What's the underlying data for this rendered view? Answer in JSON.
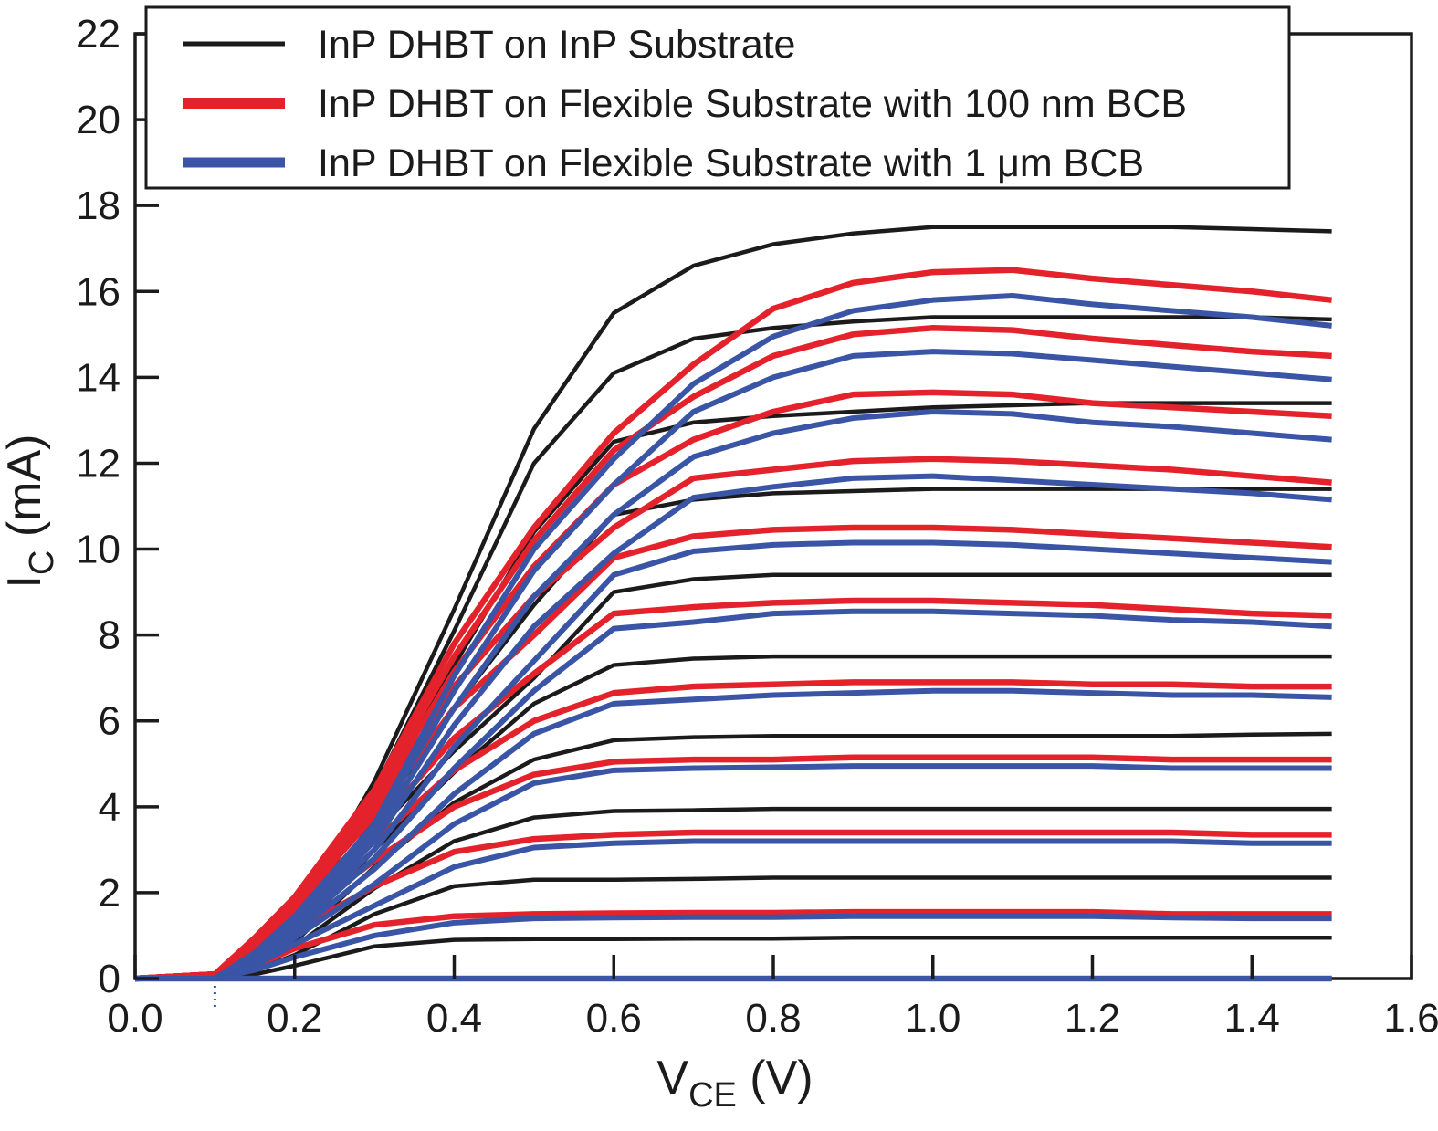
{
  "chart_data": {
    "type": "line",
    "title": "",
    "xlabel": "V_CE (V)",
    "ylabel": "I_C (mA)",
    "xlabel_parts": {
      "main": "V",
      "sub": "CE",
      "unit": " (V)"
    },
    "ylabel_parts": {
      "main": "I",
      "sub": "C",
      "unit": " (mA)"
    },
    "xlim": [
      0.0,
      1.6
    ],
    "ylim": [
      0,
      22
    ],
    "grid": false,
    "legend_position": "top-left",
    "xticks": [
      0.0,
      0.2,
      0.4,
      0.6,
      0.8,
      1.0,
      1.2,
      1.4,
      1.6
    ],
    "xtick_labels": [
      "0.0",
      "0.2",
      "0.4",
      "0.6",
      "0.8",
      "1.0",
      "1.2",
      "1.4",
      "1.6"
    ],
    "yticks": [
      0,
      2,
      4,
      6,
      8,
      10,
      12,
      14,
      16,
      18,
      20,
      22
    ],
    "ytick_labels": [
      "0",
      "2",
      "4",
      "6",
      "8",
      "10",
      "12",
      "14",
      "16",
      "18",
      "20",
      "22"
    ],
    "colors": {
      "black": "#1b1b1b",
      "red": "#e4222b",
      "blue": "#3a55a5"
    },
    "line_widths": {
      "black": 4.5,
      "red": 6.5,
      "blue": 6.0
    },
    "legend": [
      {
        "label": "InP DHBT on InP Substrate",
        "color": "black",
        "swatch_width": 5
      },
      {
        "label": "InP DHBT on Flexible Substrate with 100 nm BCB",
        "color": "red",
        "swatch_width": 12
      },
      {
        "label": "InP DHBT on Flexible Substrate with 1 μm BCB",
        "color": "blue",
        "swatch_width": 11
      }
    ],
    "x": [
      0,
      0.1,
      0.15,
      0.2,
      0.3,
      0.4,
      0.5,
      0.6,
      0.7,
      0.8,
      0.9,
      1.0,
      1.1,
      1.2,
      1.3,
      1.4,
      1.5
    ],
    "series": [
      {
        "name": "black-ib0",
        "family": "black",
        "values": [
          0,
          0,
          0,
          0,
          0,
          0,
          0,
          0,
          0,
          0,
          0,
          0,
          0,
          0,
          0,
          0,
          0
        ]
      },
      {
        "name": "black-10",
        "family": "black",
        "values": [
          0,
          0,
          0.1,
          0.3,
          0.75,
          0.9,
          0.92,
          0.92,
          0.93,
          0.93,
          0.95,
          0.95,
          0.95,
          0.95,
          0.95,
          0.95,
          0.95
        ]
      },
      {
        "name": "black-9",
        "family": "black",
        "values": [
          0,
          0,
          0.2,
          0.55,
          1.5,
          2.15,
          2.3,
          2.3,
          2.32,
          2.35,
          2.35,
          2.35,
          2.35,
          2.35,
          2.35,
          2.35,
          2.35
        ]
      },
      {
        "name": "black-8",
        "family": "black",
        "values": [
          0,
          0,
          0.25,
          0.75,
          2.1,
          3.2,
          3.75,
          3.9,
          3.92,
          3.95,
          3.95,
          3.95,
          3.95,
          3.95,
          3.95,
          3.95,
          3.95
        ]
      },
      {
        "name": "black-7",
        "family": "black",
        "values": [
          0,
          0,
          0.28,
          0.85,
          2.6,
          4.1,
          5.1,
          5.55,
          5.62,
          5.65,
          5.65,
          5.65,
          5.65,
          5.65,
          5.65,
          5.68,
          5.7
        ]
      },
      {
        "name": "black-6",
        "family": "black",
        "values": [
          0,
          0,
          0.3,
          0.95,
          3.0,
          4.8,
          6.4,
          7.3,
          7.45,
          7.5,
          7.5,
          7.5,
          7.5,
          7.5,
          7.5,
          7.5,
          7.5
        ]
      },
      {
        "name": "black-5",
        "family": "black",
        "values": [
          0,
          0,
          0.35,
          1.05,
          3.4,
          5.3,
          7.0,
          9.0,
          9.3,
          9.4,
          9.4,
          9.4,
          9.4,
          9.4,
          9.4,
          9.4,
          9.4
        ]
      },
      {
        "name": "black-4",
        "family": "black",
        "values": [
          0,
          0,
          0.38,
          1.15,
          3.7,
          6.3,
          8.7,
          10.8,
          11.15,
          11.3,
          11.35,
          11.4,
          11.4,
          11.4,
          11.4,
          11.4,
          11.4
        ]
      },
      {
        "name": "black-3",
        "family": "black",
        "values": [
          0,
          0,
          0.4,
          1.25,
          4.1,
          7.3,
          10.4,
          12.5,
          12.95,
          13.1,
          13.2,
          13.3,
          13.35,
          13.4,
          13.4,
          13.4,
          13.4
        ]
      },
      {
        "name": "black-2",
        "family": "black",
        "values": [
          0,
          0,
          0.45,
          1.35,
          4.4,
          8.1,
          12.0,
          14.1,
          14.9,
          15.15,
          15.3,
          15.4,
          15.4,
          15.4,
          15.4,
          15.4,
          15.35
        ]
      },
      {
        "name": "black-1",
        "family": "black",
        "values": [
          0,
          0,
          0.5,
          1.4,
          4.6,
          8.6,
          12.8,
          15.5,
          16.6,
          17.1,
          17.35,
          17.5,
          17.5,
          17.5,
          17.5,
          17.45,
          17.4
        ]
      },
      {
        "name": "red-ib0",
        "family": "red",
        "values": [
          0,
          0,
          0,
          0,
          0,
          0,
          0,
          0,
          0,
          0,
          0,
          0,
          0,
          0,
          0,
          0,
          0
        ]
      },
      {
        "name": "red-10",
        "family": "red",
        "values": [
          0,
          0.05,
          0.3,
          0.7,
          1.25,
          1.45,
          1.5,
          1.52,
          1.53,
          1.53,
          1.55,
          1.55,
          1.55,
          1.55,
          1.5,
          1.5,
          1.5
        ]
      },
      {
        "name": "red-9",
        "family": "red",
        "values": [
          0,
          0.1,
          0.5,
          1.1,
          2.15,
          2.95,
          3.25,
          3.35,
          3.4,
          3.4,
          3.4,
          3.4,
          3.4,
          3.4,
          3.4,
          3.35,
          3.35
        ]
      },
      {
        "name": "red-8",
        "family": "red",
        "values": [
          0,
          0.1,
          0.6,
          1.35,
          2.75,
          4.0,
          4.75,
          5.05,
          5.1,
          5.1,
          5.15,
          5.15,
          5.15,
          5.15,
          5.1,
          5.1,
          5.1
        ]
      },
      {
        "name": "red-7",
        "family": "red",
        "values": [
          0,
          0.1,
          0.7,
          1.5,
          3.2,
          4.85,
          6.0,
          6.65,
          6.8,
          6.85,
          6.9,
          6.9,
          6.9,
          6.85,
          6.85,
          6.8,
          6.8
        ]
      },
      {
        "name": "red-6",
        "family": "red",
        "values": [
          0,
          0.1,
          0.75,
          1.6,
          3.5,
          5.6,
          7.1,
          8.5,
          8.65,
          8.75,
          8.8,
          8.8,
          8.75,
          8.7,
          8.6,
          8.5,
          8.45
        ]
      },
      {
        "name": "red-5",
        "family": "red",
        "values": [
          0,
          0.1,
          0.78,
          1.7,
          3.8,
          6.3,
          8.0,
          9.8,
          10.3,
          10.45,
          10.5,
          10.5,
          10.45,
          10.35,
          10.25,
          10.15,
          10.05
        ]
      },
      {
        "name": "red-4",
        "family": "red",
        "values": [
          0,
          0.1,
          0.8,
          1.75,
          3.95,
          6.8,
          8.9,
          10.5,
          11.65,
          11.85,
          12.05,
          12.1,
          12.05,
          11.95,
          11.85,
          11.7,
          11.55
        ]
      },
      {
        "name": "red-3",
        "family": "red",
        "values": [
          0,
          0.1,
          0.85,
          1.8,
          4.1,
          7.15,
          9.6,
          11.5,
          12.55,
          13.2,
          13.6,
          13.65,
          13.6,
          13.4,
          13.3,
          13.2,
          13.1
        ]
      },
      {
        "name": "red-2",
        "family": "red",
        "values": [
          0,
          0.1,
          0.9,
          1.85,
          4.25,
          7.5,
          10.2,
          12.3,
          13.55,
          14.5,
          15.0,
          15.15,
          15.1,
          14.9,
          14.75,
          14.6,
          14.5
        ]
      },
      {
        "name": "red-1",
        "family": "red",
        "values": [
          0,
          0.1,
          0.95,
          1.9,
          4.4,
          7.8,
          10.5,
          12.7,
          14.3,
          15.6,
          16.2,
          16.45,
          16.5,
          16.3,
          16.15,
          16.0,
          15.8
        ]
      },
      {
        "name": "blue-ib0",
        "family": "blue",
        "values": [
          0,
          0,
          0,
          0,
          0,
          0,
          0,
          0,
          0,
          0,
          0,
          0,
          0,
          0,
          0,
          0,
          0
        ]
      },
      {
        "name": "blue-10",
        "family": "blue",
        "values": [
          0,
          0,
          0.2,
          0.5,
          1.0,
          1.3,
          1.4,
          1.42,
          1.43,
          1.43,
          1.45,
          1.45,
          1.45,
          1.45,
          1.42,
          1.4,
          1.4
        ]
      },
      {
        "name": "blue-9",
        "family": "blue",
        "values": [
          0,
          0,
          0.3,
          0.8,
          1.7,
          2.6,
          3.05,
          3.15,
          3.2,
          3.2,
          3.2,
          3.2,
          3.2,
          3.2,
          3.2,
          3.15,
          3.15
        ]
      },
      {
        "name": "blue-8",
        "family": "blue",
        "values": [
          0,
          0,
          0.35,
          0.95,
          2.2,
          3.6,
          4.55,
          4.85,
          4.9,
          4.92,
          4.95,
          4.95,
          4.95,
          4.95,
          4.9,
          4.9,
          4.9
        ]
      },
      {
        "name": "blue-7",
        "family": "blue",
        "values": [
          0,
          0,
          0.4,
          1.05,
          2.55,
          4.3,
          5.7,
          6.4,
          6.5,
          6.6,
          6.65,
          6.7,
          6.7,
          6.65,
          6.6,
          6.6,
          6.55
        ]
      },
      {
        "name": "blue-6",
        "family": "blue",
        "values": [
          0,
          0,
          0.45,
          1.15,
          2.8,
          4.9,
          6.7,
          8.15,
          8.3,
          8.5,
          8.55,
          8.55,
          8.5,
          8.45,
          8.35,
          8.3,
          8.2
        ]
      },
      {
        "name": "blue-5",
        "family": "blue",
        "values": [
          0,
          0,
          0.48,
          1.25,
          3.0,
          5.4,
          7.4,
          9.4,
          9.95,
          10.1,
          10.15,
          10.15,
          10.1,
          10.0,
          9.9,
          9.8,
          9.7
        ]
      },
      {
        "name": "blue-4",
        "family": "blue",
        "values": [
          0,
          0,
          0.5,
          1.3,
          3.2,
          5.9,
          8.2,
          9.9,
          11.2,
          11.45,
          11.65,
          11.7,
          11.6,
          11.5,
          11.4,
          11.3,
          11.15
        ]
      },
      {
        "name": "blue-3",
        "family": "blue",
        "values": [
          0,
          0,
          0.55,
          1.35,
          3.35,
          6.3,
          8.9,
          10.8,
          12.15,
          12.7,
          13.05,
          13.2,
          13.15,
          12.95,
          12.85,
          12.7,
          12.55
        ]
      },
      {
        "name": "blue-2",
        "family": "blue",
        "values": [
          0,
          0,
          0.58,
          1.4,
          3.5,
          6.7,
          9.5,
          11.5,
          13.2,
          14.0,
          14.5,
          14.6,
          14.55,
          14.4,
          14.25,
          14.1,
          13.95
        ]
      },
      {
        "name": "blue-1",
        "family": "blue",
        "values": [
          0,
          0,
          0.6,
          1.45,
          3.6,
          7.05,
          10.0,
          12.1,
          13.85,
          14.95,
          15.55,
          15.8,
          15.9,
          15.7,
          15.55,
          15.4,
          15.2
        ]
      }
    ],
    "annotations": {
      "dotted_minor_mark_v": 0.1
    }
  }
}
